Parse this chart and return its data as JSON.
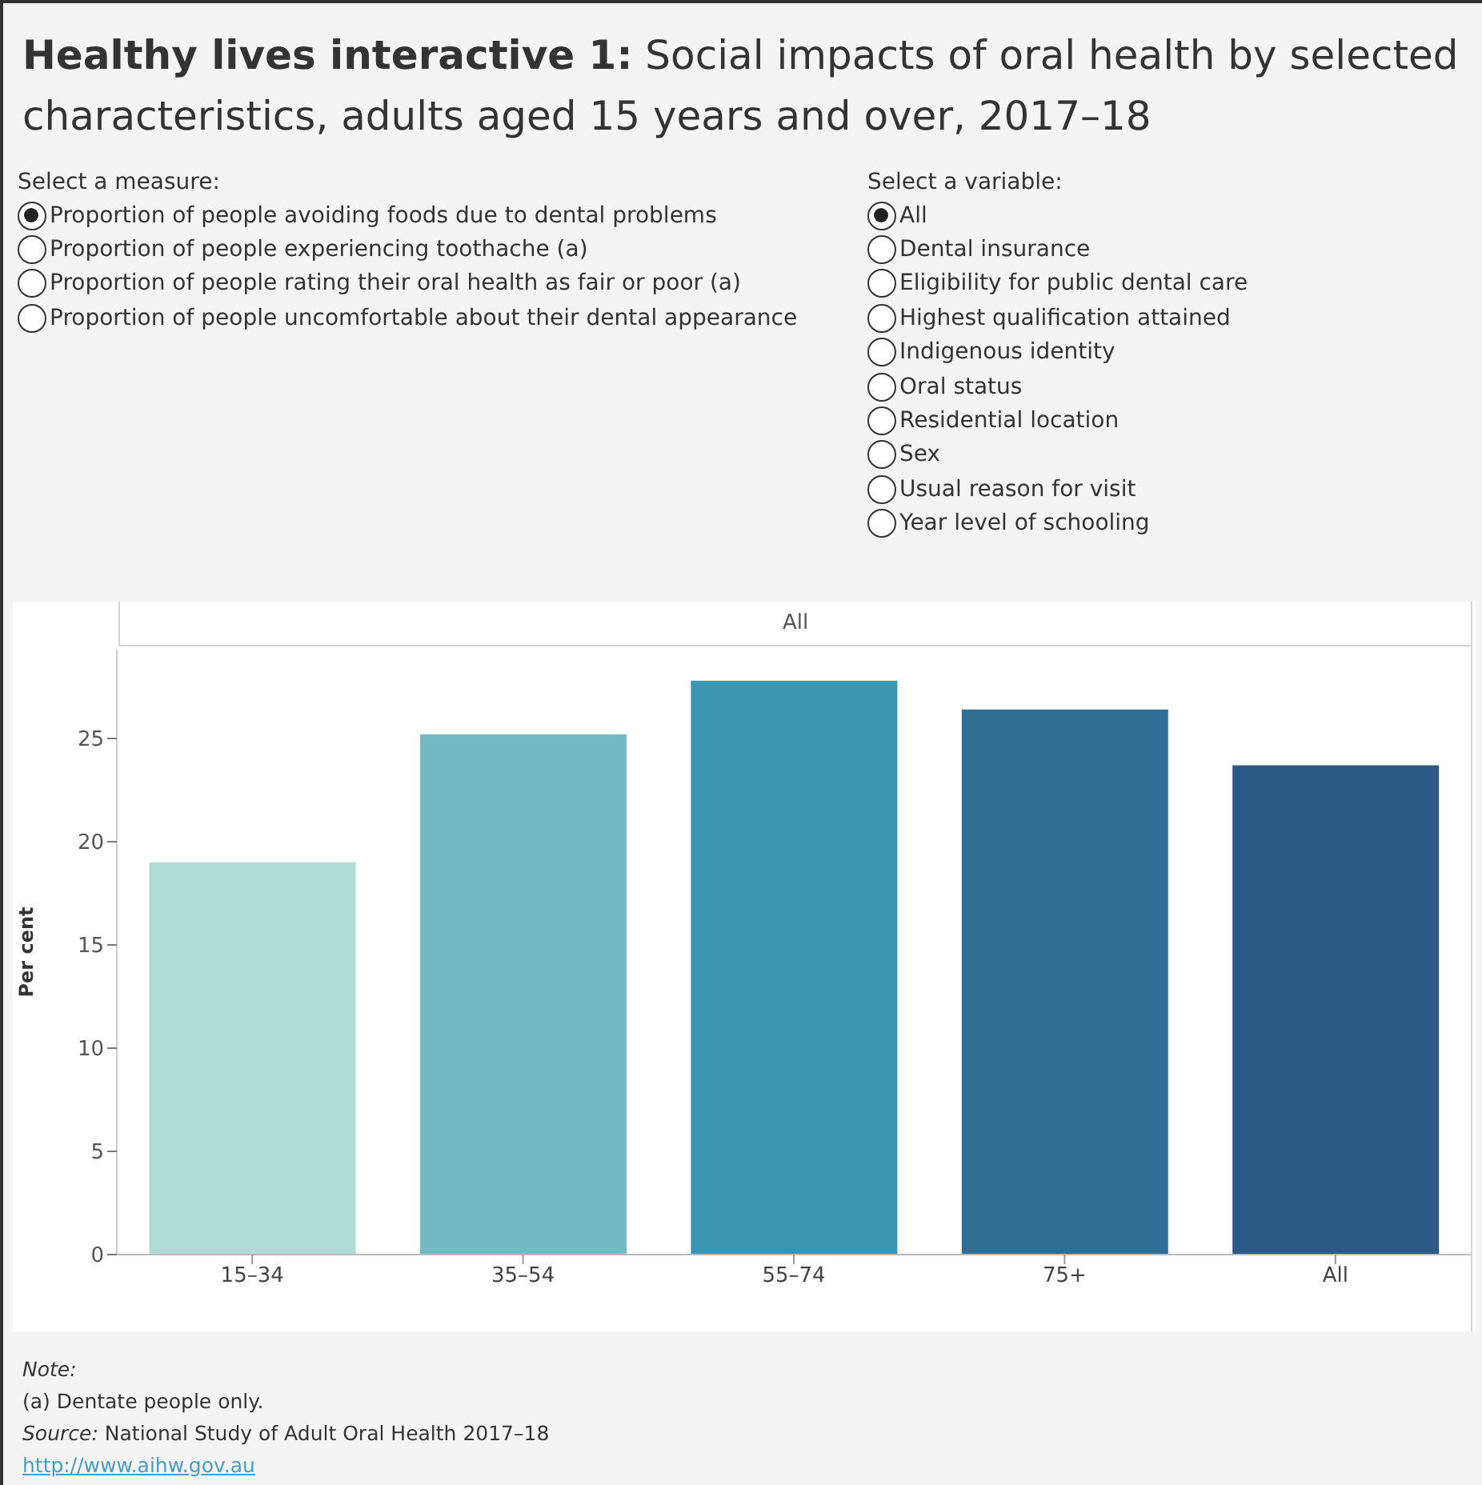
{
  "chart_data": {
    "type": "bar",
    "title": "Healthy lives interactive 1:",
    "subtitle": "Social impacts of oral health by selected characteristics, adults aged 15 years and over, 2017–18",
    "ylabel": "Per cent",
    "categories": [
      "15–34",
      "35–54",
      "55–74",
      "75+",
      "All"
    ],
    "values": [
      19.0,
      25.2,
      27.8,
      26.4,
      23.7
    ],
    "colors": [
      "#b0dcd6",
      "#74b9c5",
      "#3b94b0",
      "#316e95",
      "#2d5985"
    ],
    "ylim": [
      0,
      29.3
    ],
    "yticks": [
      0,
      5,
      10,
      15,
      20,
      25
    ],
    "annotations": [
      "Select a measure:",
      "Proportion of people avoiding foods due to dental problems",
      "Proportion of people experiencing toothache (a)",
      "Proportion of people rating their oral health as fair or poor (a)",
      "Proportion of people uncomfortable about their dental appearance",
      "Select a variable:",
      "All",
      "Dental insurance",
      "Eligibility for public dental care",
      "Highest qualification attained",
      "Indigenous identity",
      "Oral status",
      "Residential location",
      "Sex",
      "Usual reason for visit",
      "Year level of schooling",
      "All",
      "Note:",
      "(a) Dentate people only.",
      "Source:",
      "National Study of Adult Oral Health 2017–18",
      "http://www.aihw.gov.au"
    ]
  }
}
